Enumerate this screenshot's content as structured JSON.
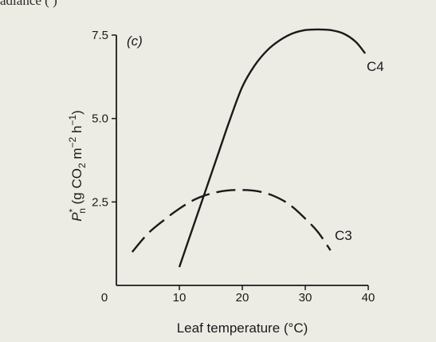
{
  "page": {
    "top_text": "adiance (  )"
  },
  "chart_data": {
    "type": "line",
    "panel_label": "(c)",
    "title": "",
    "xlabel": "Leaf temperature (°C)",
    "ylabel": {
      "P": "P",
      "sup_star": "*",
      "sub_n": "n",
      "rest_open": " (g CO",
      "sub_2": "2",
      "rest_m": " m",
      "sup_m": "−2",
      "rest_h": " h",
      "sup_h": "−1",
      "rest_close": ")"
    },
    "xlim": [
      0,
      40
    ],
    "ylim": [
      0,
      7.5
    ],
    "x_ticks": [
      0,
      10,
      20,
      30,
      40
    ],
    "x_tick_labels": [
      "0",
      "10",
      "20",
      "30",
      "40"
    ],
    "y_ticks": [
      2.5,
      5.0,
      7.5
    ],
    "y_tick_labels": [
      "2.5",
      "5.0",
      "7.5"
    ],
    "grid": false,
    "legend": "none",
    "series": [
      {
        "name": "C4",
        "style": "solid",
        "x": [
          10,
          12,
          14,
          16,
          18,
          20,
          22,
          24,
          26,
          28,
          30,
          32,
          34,
          36,
          38,
          39.5
        ],
        "y": [
          0.55,
          1.65,
          2.75,
          3.85,
          4.95,
          5.95,
          6.6,
          7.05,
          7.35,
          7.55,
          7.65,
          7.67,
          7.65,
          7.55,
          7.3,
          6.95
        ]
      },
      {
        "name": "C3",
        "style": "dashed",
        "x": [
          2.5,
          5,
          7.5,
          10,
          12.5,
          15,
          17.5,
          20,
          22.5,
          25,
          27.5,
          30,
          32,
          34
        ],
        "y": [
          1.0,
          1.55,
          1.95,
          2.3,
          2.58,
          2.75,
          2.84,
          2.86,
          2.82,
          2.68,
          2.42,
          2.0,
          1.6,
          1.05
        ]
      }
    ]
  }
}
